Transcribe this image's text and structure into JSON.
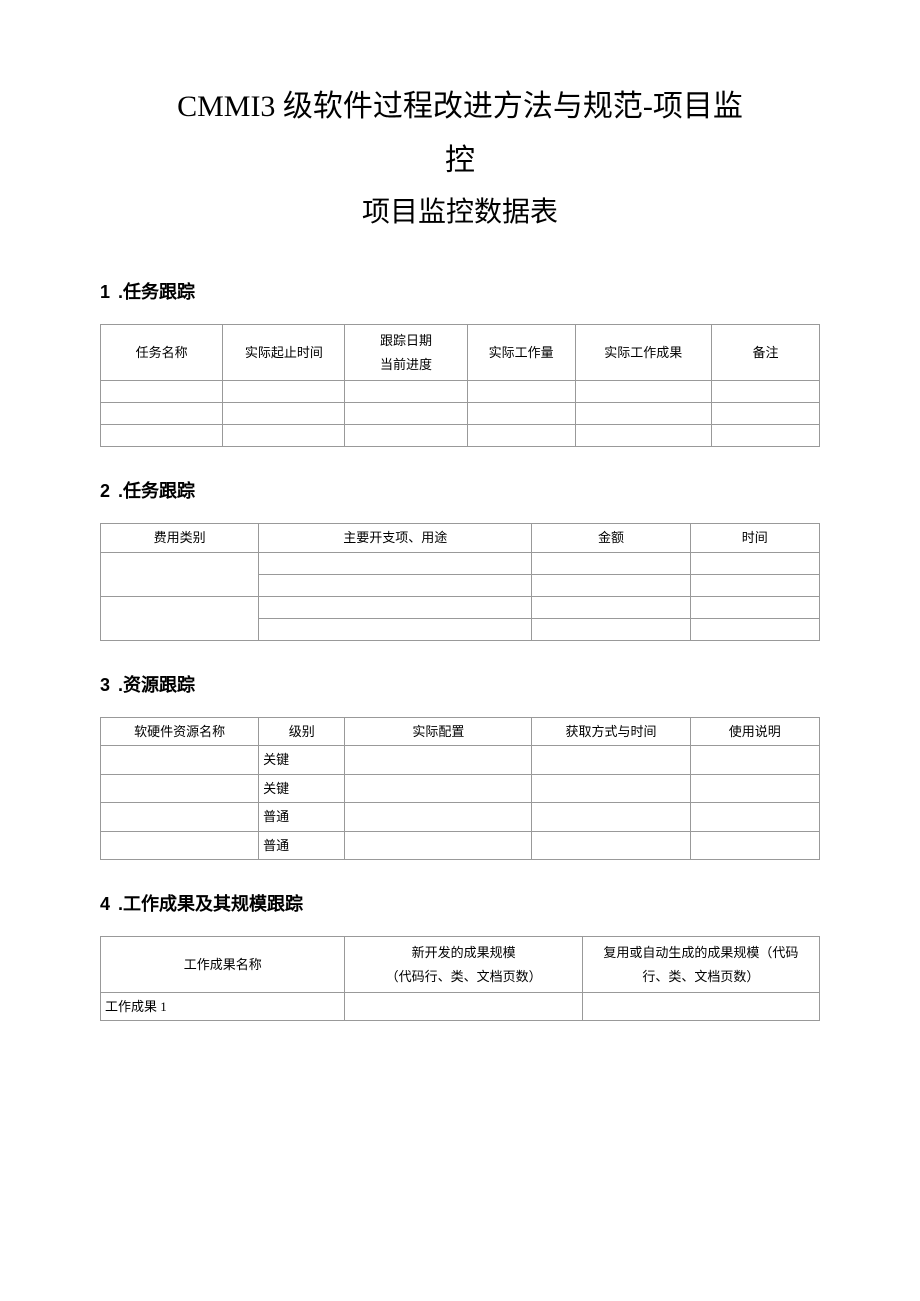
{
  "title_line1": "CMMI3 级软件过程改进方法与规范-项目监",
  "title_line2": "控",
  "subtitle": "项目监控数据表",
  "sections": [
    {
      "num": "1",
      "label": ".任务跟踪",
      "table": {
        "headers": [
          "任务名称",
          "实际起止时间",
          "跟踪日期\n当前进度",
          "实际工作量",
          "实际工作成果",
          "备注"
        ],
        "header_sublines": [
          "",
          "",
          "当前进度",
          "",
          "",
          ""
        ],
        "header_firstlines": [
          "任务名称",
          "实际起止时间",
          "跟踪日期",
          "实际工作量",
          "实际工作成果",
          "备注"
        ],
        "empty_rows": 3
      }
    },
    {
      "num": "2",
      "label": ".任务跟踪",
      "table": {
        "headers": [
          "费用类别",
          "主要开支项、用途",
          "金额",
          "时间"
        ],
        "rows_structure": [
          {
            "merged_first": true,
            "cells": 3
          },
          {
            "merged_first": false,
            "cells": 3
          },
          {
            "merged_first": true,
            "cells": 3
          },
          {
            "merged_first": false,
            "cells": 3
          }
        ]
      }
    },
    {
      "num": "3",
      "label": ".资源跟踪",
      "table": {
        "headers": [
          "软硬件资源名称",
          "级别",
          "实际配置",
          "获取方式与时间",
          "使用说明"
        ],
        "rows": [
          [
            "",
            "关键",
            "",
            "",
            ""
          ],
          [
            "",
            "关键",
            "",
            "",
            ""
          ],
          [
            "",
            "普通",
            "",
            "",
            ""
          ],
          [
            "",
            "普通",
            "",
            "",
            ""
          ]
        ]
      }
    },
    {
      "num": "4",
      "label": ".工作成果及其规模跟踪",
      "table": {
        "headers_line1": [
          "工作成果名称",
          "新开发的成果规模",
          "复用或自动生成的成果规模（代码"
        ],
        "headers_line2": [
          "",
          "（代码行、类、文档页数）",
          "行、类、文档页数）"
        ],
        "rows": [
          [
            "工作成果 1",
            "",
            ""
          ]
        ]
      }
    }
  ]
}
